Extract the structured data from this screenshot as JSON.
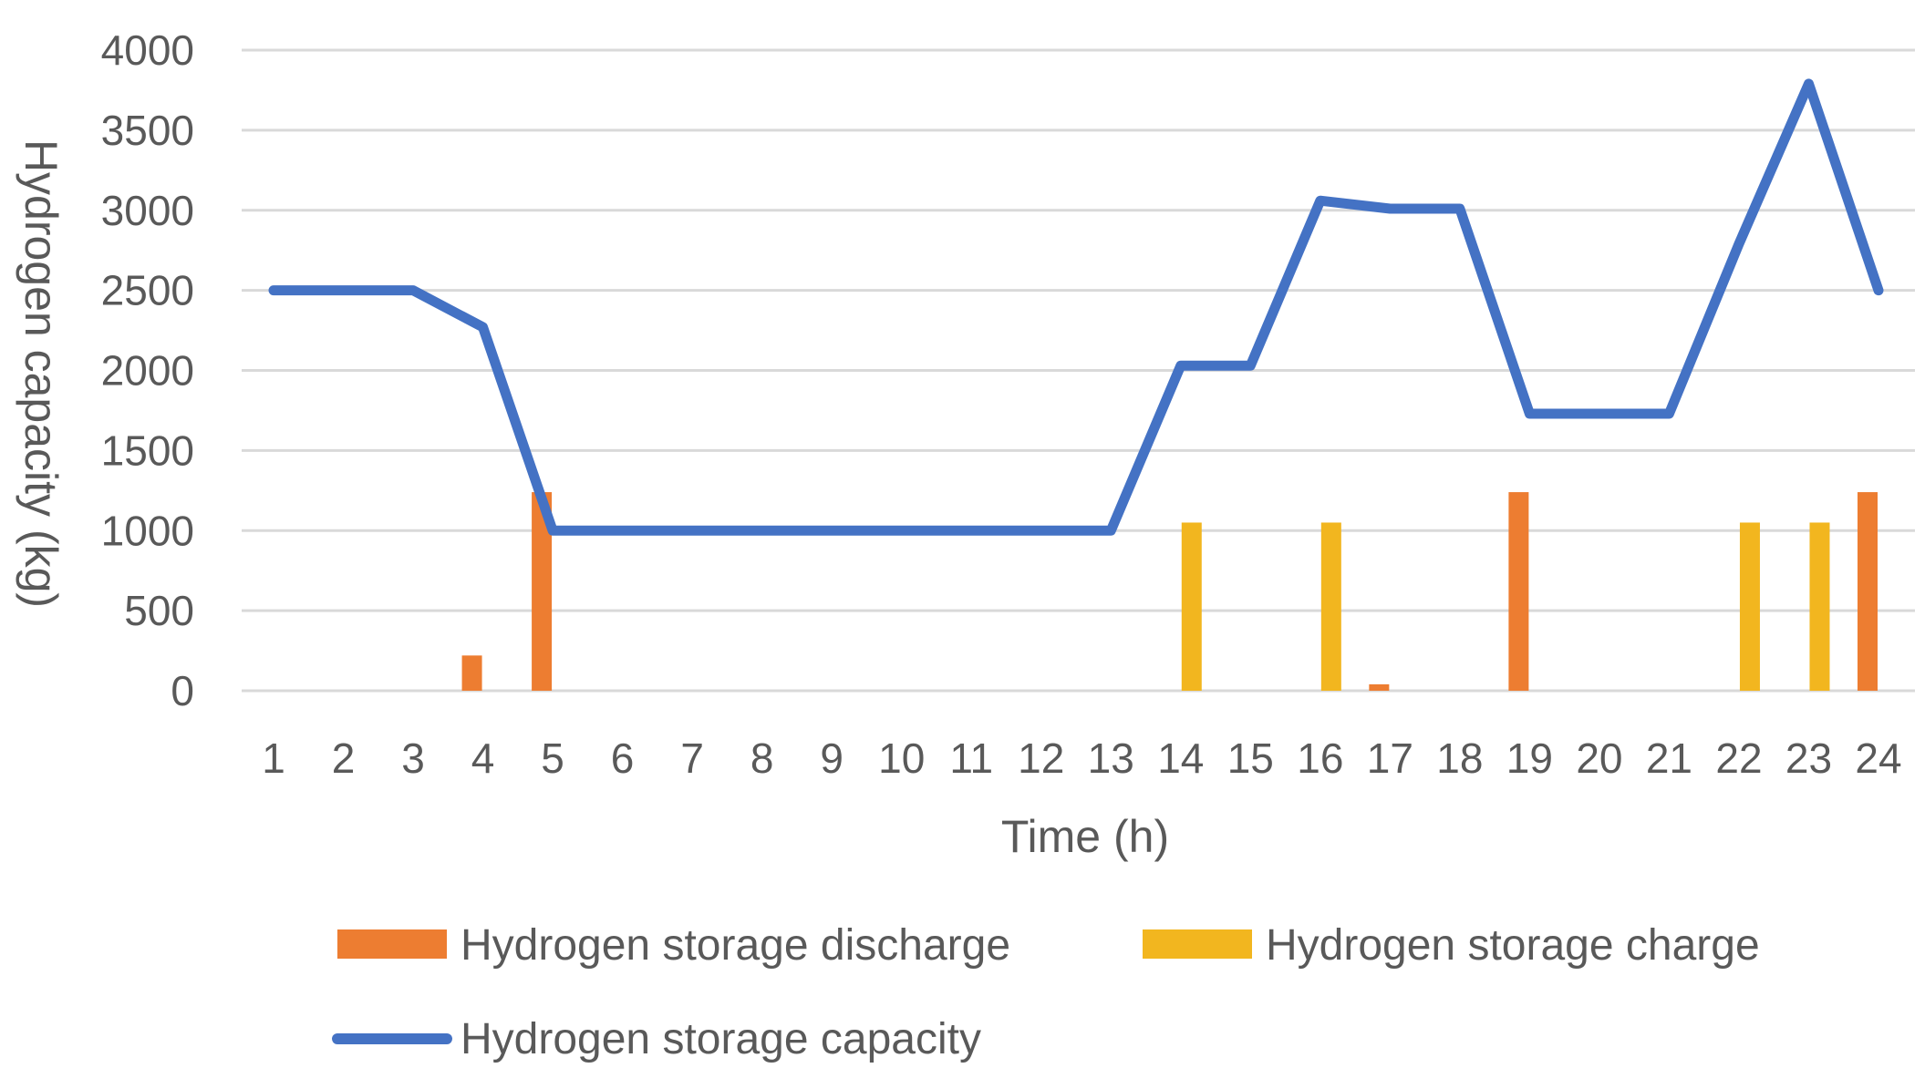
{
  "chart_data": {
    "type": "bar",
    "categories": [
      "1",
      "2",
      "3",
      "4",
      "5",
      "6",
      "7",
      "8",
      "9",
      "10",
      "11",
      "12",
      "13",
      "14",
      "15",
      "16",
      "17",
      "18",
      "19",
      "20",
      "21",
      "22",
      "23",
      "24"
    ],
    "xlabel": "Time (h)",
    "ylabel": "Hydrogen capacity (kg)",
    "ylim": [
      0,
      4000
    ],
    "yticks": [
      0,
      500,
      1000,
      1500,
      2000,
      2500,
      3000,
      3500,
      4000
    ],
    "grid": true,
    "legend_position": "bottom",
    "series": [
      {
        "name": "Hydrogen storage discharge",
        "type": "bar",
        "color": "#ed7d31",
        "values": [
          0,
          0,
          0,
          220,
          1240,
          0,
          0,
          0,
          0,
          0,
          0,
          0,
          0,
          0,
          0,
          0,
          40,
          0,
          1240,
          0,
          0,
          0,
          0,
          1240
        ]
      },
      {
        "name": "Hydrogen storage charge",
        "type": "bar",
        "color": "#f2b61f",
        "values": [
          0,
          0,
          0,
          0,
          0,
          0,
          0,
          0,
          0,
          0,
          0,
          0,
          0,
          1050,
          0,
          1050,
          0,
          0,
          0,
          0,
          0,
          1050,
          1050,
          0
        ]
      },
      {
        "name": "Hydrogen storage capacity",
        "type": "line",
        "color": "#4472c4",
        "values": [
          2500,
          2500,
          2500,
          2270,
          1000,
          1000,
          1000,
          1000,
          1000,
          1000,
          1000,
          1000,
          1000,
          2030,
          2030,
          3060,
          3010,
          3010,
          1730,
          1730,
          1730,
          2790,
          3790,
          2500
        ]
      }
    ]
  }
}
